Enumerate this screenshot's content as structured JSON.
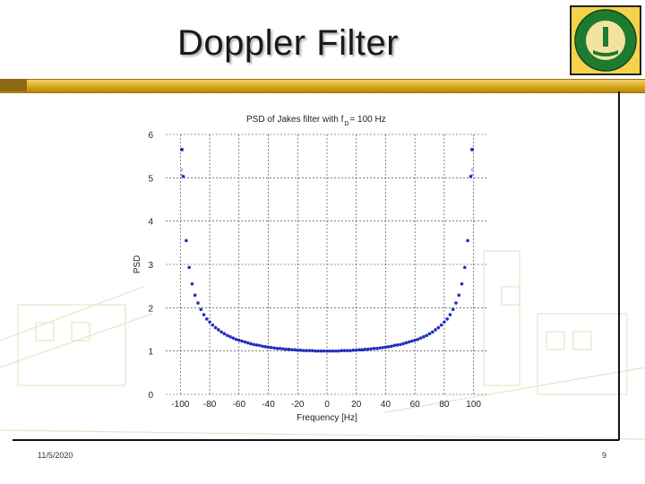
{
  "slide": {
    "title": "Doppler Filter",
    "date": "11/5/2020",
    "page_number": "9"
  },
  "colors": {
    "accent_gold": "#d9a520",
    "series": "#1f2fbf",
    "grid": "#333333"
  },
  "chart_data": {
    "type": "scatter",
    "title_main": "PSD of Jakes filter with f",
    "title_sub": "D",
    "title_tail": " = 100 Hz",
    "xlabel": "Frequency [Hz]",
    "ylabel": "PSD",
    "xlim": [
      -110,
      110
    ],
    "ylim": [
      0,
      6
    ],
    "xticks": [
      -100,
      -80,
      -60,
      -40,
      -20,
      0,
      20,
      40,
      60,
      80,
      100
    ],
    "xtick_labels": [
      "-100",
      "-80",
      "-60",
      "-40",
      "-20",
      "0",
      "20",
      "40",
      "60",
      "80",
      "100"
    ],
    "yticks": [
      0,
      1,
      2,
      3,
      4,
      5,
      6
    ],
    "ytick_labels": [
      "0",
      "1",
      "2",
      "3",
      "4",
      "5",
      "6"
    ],
    "grid": true,
    "marker": "dot",
    "series": [
      {
        "values_x": [
          -98,
          -96,
          -94,
          -92,
          -90,
          -88,
          -86,
          -84,
          -82,
          -80,
          -78,
          -76,
          -74,
          -72,
          -70,
          -68,
          -66,
          -64,
          -62,
          -60,
          -58,
          -56,
          -54,
          -52,
          -50,
          -48,
          -46,
          -44,
          -42,
          -40,
          -38,
          -36,
          -34,
          -32,
          -30,
          -28,
          -26,
          -24,
          -22,
          -20,
          -18,
          -16,
          -14,
          -12,
          -10,
          -8,
          -6,
          -4,
          -2,
          0,
          2,
          4,
          6,
          8,
          10,
          12,
          14,
          16,
          18,
          20,
          22,
          24,
          26,
          28,
          30,
          32,
          34,
          36,
          38,
          40,
          42,
          44,
          46,
          48,
          50,
          52,
          54,
          56,
          58,
          60,
          62,
          64,
          66,
          68,
          70,
          72,
          74,
          76,
          78,
          80,
          82,
          84,
          86,
          88,
          90,
          92,
          94,
          96,
          98
        ],
        "values_y": [
          5.03,
          3.55,
          2.93,
          2.55,
          2.29,
          2.11,
          1.96,
          1.84,
          1.74,
          1.67,
          1.6,
          1.54,
          1.49,
          1.44,
          1.4,
          1.36,
          1.33,
          1.3,
          1.27,
          1.25,
          1.23,
          1.21,
          1.19,
          1.17,
          1.15,
          1.14,
          1.13,
          1.11,
          1.1,
          1.09,
          1.08,
          1.07,
          1.06,
          1.06,
          1.05,
          1.04,
          1.04,
          1.03,
          1.03,
          1.02,
          1.02,
          1.01,
          1.01,
          1.01,
          1.01,
          1.0,
          1.0,
          1.0,
          1.0,
          1.0,
          1.0,
          1.0,
          1.0,
          1.0,
          1.01,
          1.01,
          1.01,
          1.01,
          1.02,
          1.02,
          1.03,
          1.03,
          1.04,
          1.04,
          1.05,
          1.06,
          1.06,
          1.07,
          1.08,
          1.09,
          1.1,
          1.11,
          1.13,
          1.14,
          1.15,
          1.17,
          1.19,
          1.21,
          1.23,
          1.25,
          1.27,
          1.3,
          1.33,
          1.36,
          1.4,
          1.44,
          1.49,
          1.54,
          1.6,
          1.67,
          1.74,
          1.84,
          1.96,
          2.11,
          2.29,
          2.55,
          2.93,
          3.55,
          5.03
        ],
        "edge_points_x": [
          -99,
          99
        ],
        "edge_points_y": [
          5.65,
          5.65
        ]
      }
    ]
  }
}
